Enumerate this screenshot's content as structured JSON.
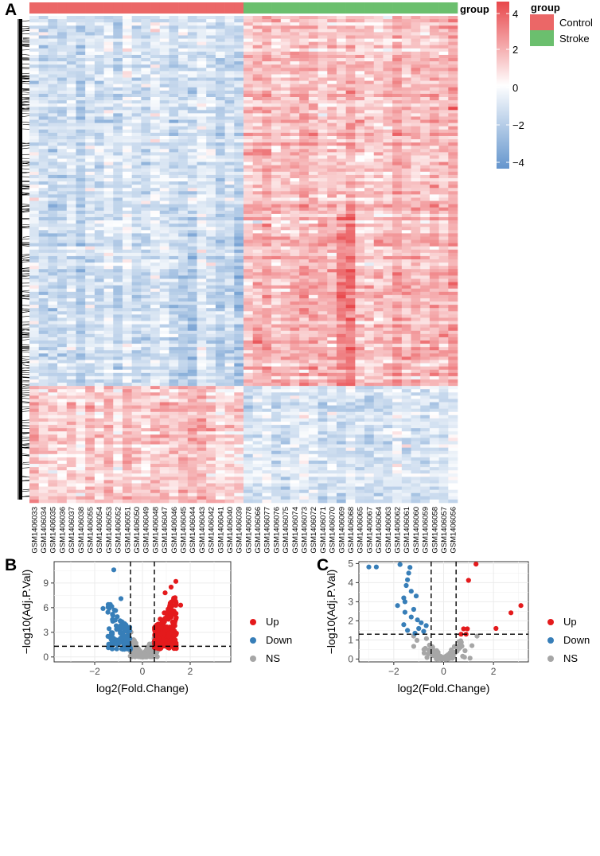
{
  "panels": {
    "a": "A",
    "b": "B",
    "c": "C"
  },
  "colors": {
    "control": "#EB6767",
    "stroke": "#6BBF6E",
    "up": "#E41A1C",
    "down": "#377EB8",
    "ns": "#A6A6A6",
    "heat_high": "#E8474B",
    "heat_mid": "#FFFFFF",
    "heat_low": "#6495CD",
    "panel_bg": "#FFFFFF",
    "grid": "#EBEBEB"
  },
  "chart_data": [
    {
      "id": "heatmap",
      "type": "heatmap",
      "annotation_title": "group",
      "groups": [
        {
          "name": "Control",
          "n": 23
        },
        {
          "name": "Stroke",
          "n": 23
        }
      ],
      "legend_group_title": "group",
      "legend_group_entries": [
        "Control",
        "Stroke"
      ],
      "color_scale": {
        "min": -4,
        "max": 4,
        "ticks": [
          "4",
          "2",
          "0",
          "−2",
          "−4"
        ]
      },
      "samples": [
        "GSM1406033",
        "GSM1406034",
        "GSM1406035",
        "GSM1406036",
        "GSM1406037",
        "GSM1406038",
        "GSM1406055",
        "GSM1406054",
        "GSM1406053",
        "GSM1406052",
        "GSM1406051",
        "GSM1406050",
        "GSM1406049",
        "GSM1406048",
        "GSM1406047",
        "GSM1406046",
        "GSM1406045",
        "GSM1406044",
        "GSM1406043",
        "GSM1406042",
        "GSM1406041",
        "GSM1406040",
        "GSM1406039",
        "GSM1406078",
        "GSM1406066",
        "GSM1406077",
        "GSM1406076",
        "GSM1406075",
        "GSM1406074",
        "GSM1406073",
        "GSM1406072",
        "GSM1406071",
        "GSM1406070",
        "GSM1406069",
        "GSM1406068",
        "GSM1406065",
        "GSM1406067",
        "GSM1406064",
        "GSM1406063",
        "GSM1406062",
        "GSM1406061",
        "GSM1406060",
        "GSM1406059",
        "GSM1406058",
        "GSM1406057",
        "GSM1406056"
      ],
      "pattern": {
        "top_block_fraction": 0.76,
        "top_block": {
          "control": -0.6,
          "stroke": 0.8
        },
        "bottom_block": {
          "control": 0.7,
          "stroke": -0.6
        }
      }
    },
    {
      "id": "volcano_b",
      "type": "scatter",
      "xlabel": "log2(Fold.Change)",
      "ylabel": "−log10(Adj.P.Val)",
      "xlim": [
        -3.7,
        3.7
      ],
      "ylim": [
        -0.6,
        11.6
      ],
      "xticks": [
        -2,
        0,
        2
      ],
      "yticks": [
        0,
        3,
        6,
        9
      ],
      "xtick_labels": [
        "−2",
        "0",
        "2"
      ],
      "ytick_labels": [
        "0",
        "3",
        "6",
        "9"
      ],
      "vlines": [
        -0.5,
        0.5
      ],
      "hline": 1.3,
      "legend": [
        "Up",
        "Down",
        "NS"
      ],
      "named_points": [
        {
          "x": -1.2,
          "y": 10.6,
          "group": "Down"
        },
        {
          "x": 1.4,
          "y": 9.2,
          "group": "Up"
        },
        {
          "x": 1.6,
          "y": 6.3,
          "group": "Up"
        },
        {
          "x": -1.65,
          "y": 5.9,
          "group": "Down"
        },
        {
          "x": -0.9,
          "y": 7.1,
          "group": "Down"
        },
        {
          "x": 1.2,
          "y": 8.5,
          "group": "Up"
        },
        {
          "x": 0.95,
          "y": 7.8,
          "group": "Up"
        }
      ],
      "series": [
        {
          "name": "Up",
          "n": 230,
          "x_range": [
            0.5,
            1.5
          ],
          "y_range": [
            0.9,
            7.6
          ]
        },
        {
          "name": "Down",
          "n": 120,
          "x_range": [
            -1.5,
            -0.5
          ],
          "y_range": [
            0.9,
            6.8
          ]
        },
        {
          "name": "NS",
          "n": 260,
          "x_range": [
            -0.6,
            0.6
          ],
          "y_range": [
            0,
            4.5
          ]
        }
      ]
    },
    {
      "id": "volcano_c",
      "type": "scatter",
      "xlabel": "log2(Fold.Change)",
      "ylabel": "−log10(Adj.P.Val)",
      "xlim": [
        -3.4,
        3.4
      ],
      "ylim": [
        -0.15,
        5.1
      ],
      "xticks": [
        -2,
        0,
        2
      ],
      "yticks": [
        0,
        1,
        2,
        3,
        4,
        5
      ],
      "xtick_labels": [
        "−2",
        "0",
        "2"
      ],
      "ytick_labels": [
        "0",
        "1",
        "2",
        "3",
        "4",
        "5"
      ],
      "vlines": [
        -0.5,
        0.5
      ],
      "hline": 1.3,
      "legend": [
        "Up",
        "Down",
        "NS"
      ],
      "points": [
        {
          "x": -3.0,
          "y": 4.82,
          "group": "Down"
        },
        {
          "x": -2.7,
          "y": 4.82,
          "group": "Down"
        },
        {
          "x": -1.75,
          "y": 4.95,
          "group": "Down"
        },
        {
          "x": -1.35,
          "y": 4.8,
          "group": "Down"
        },
        {
          "x": -1.4,
          "y": 4.5,
          "group": "Down"
        },
        {
          "x": -1.45,
          "y": 4.15,
          "group": "Down"
        },
        {
          "x": -1.5,
          "y": 3.85,
          "group": "Down"
        },
        {
          "x": -1.3,
          "y": 3.55,
          "group": "Down"
        },
        {
          "x": -1.85,
          "y": 2.8,
          "group": "Down"
        },
        {
          "x": -1.55,
          "y": 3.0,
          "group": "Down"
        },
        {
          "x": -1.6,
          "y": 3.2,
          "group": "Down"
        },
        {
          "x": -1.1,
          "y": 3.3,
          "group": "Down"
        },
        {
          "x": -1.2,
          "y": 2.6,
          "group": "Down"
        },
        {
          "x": -1.3,
          "y": 2.2,
          "group": "Down"
        },
        {
          "x": -1.05,
          "y": 2.05,
          "group": "Down"
        },
        {
          "x": -0.9,
          "y": 1.9,
          "group": "Down"
        },
        {
          "x": -1.6,
          "y": 1.8,
          "group": "Down"
        },
        {
          "x": -1.45,
          "y": 1.5,
          "group": "Down"
        },
        {
          "x": -1.0,
          "y": 1.6,
          "group": "Down"
        },
        {
          "x": -0.8,
          "y": 1.45,
          "group": "Down"
        },
        {
          "x": -0.7,
          "y": 1.75,
          "group": "Down"
        },
        {
          "x": -1.55,
          "y": 2.45,
          "group": "Down"
        },
        {
          "x": -1.15,
          "y": 1.35,
          "group": "Down"
        },
        {
          "x": 1.3,
          "y": 4.97,
          "group": "Up"
        },
        {
          "x": 1.0,
          "y": 4.12,
          "group": "Up"
        },
        {
          "x": 3.1,
          "y": 2.8,
          "group": "Up"
        },
        {
          "x": 2.7,
          "y": 2.42,
          "group": "Up"
        },
        {
          "x": 2.1,
          "y": 1.6,
          "group": "Up"
        },
        {
          "x": 0.8,
          "y": 1.58,
          "group": "Up"
        },
        {
          "x": 0.95,
          "y": 1.58,
          "group": "Up"
        },
        {
          "x": 0.7,
          "y": 1.3,
          "group": "Up"
        },
        {
          "x": 0.9,
          "y": 1.3,
          "group": "Up"
        }
      ],
      "series": [
        {
          "name": "NS",
          "n": 110,
          "x_range": [
            -1.2,
            1.6
          ],
          "y_range": [
            0,
            1.25
          ]
        }
      ]
    }
  ]
}
